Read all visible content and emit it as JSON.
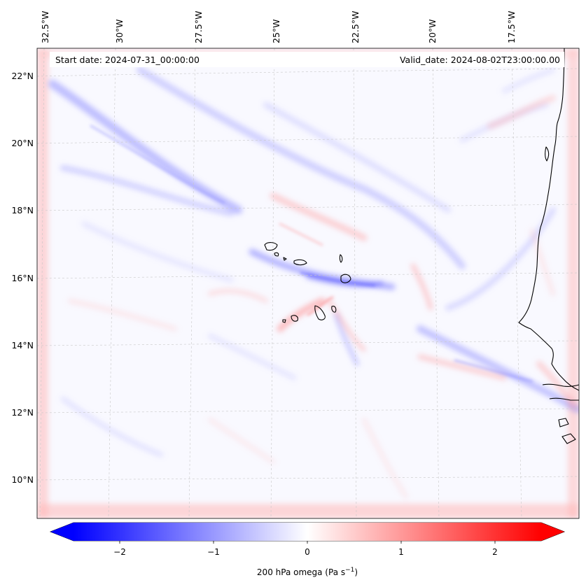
{
  "header": {
    "start_date": "Start date: 2024-07-31_00:00:00",
    "valid_date": "Valid_date: 2024-08-02T23:00:00.00"
  },
  "map": {
    "lon_labels": [
      "32.5°W",
      "30°W",
      "27.5°W",
      "25°W",
      "22.5°W",
      "20°W",
      "17.5°W"
    ],
    "lat_labels": [
      "22°N",
      "20°N",
      "18°N",
      "16°N",
      "14°N",
      "12°N",
      "10°N"
    ],
    "gridlines": true,
    "coastline_color": "#000000"
  },
  "colorbar": {
    "label_prefix": "200 hPa omega (Pa s",
    "label_sup": "−1",
    "label_suffix": ")",
    "tick_labels": [
      "−2",
      "−1",
      "0",
      "1",
      "2"
    ],
    "range": [
      -2.75,
      2.75
    ],
    "cmap": "bwr",
    "colors": {
      "min": "#0000ff",
      "mid": "#ffffff",
      "max": "#ff0000"
    }
  }
}
